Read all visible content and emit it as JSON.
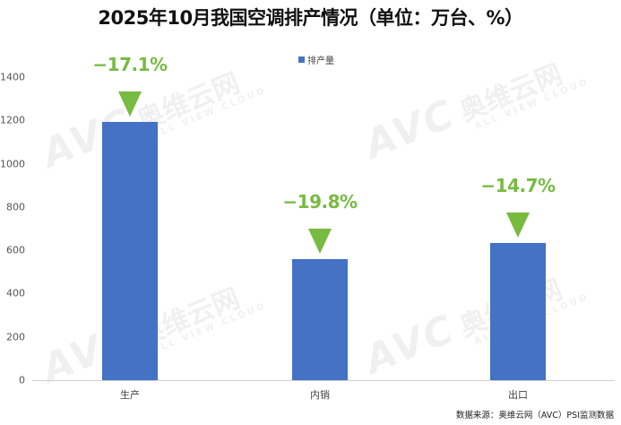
{
  "title": "2025年10月我国空调排产情况（单位：万台、%）",
  "legend": {
    "label": "排产量",
    "color": "#4472c4"
  },
  "y_ticks": [
    "1400",
    "1200",
    "1000",
    "800",
    "600",
    "400",
    "200",
    "0"
  ],
  "bars": [
    {
      "category": "生产",
      "value": 1192,
      "change": "−17.1%"
    },
    {
      "category": "内销",
      "value": 559,
      "change": "−19.8%"
    },
    {
      "category": "出口",
      "value": 633,
      "change": "−14.7%"
    }
  ],
  "colors": {
    "bar": "#4472c4",
    "change": "#77bb41"
  },
  "source": "数据来源：奥维云网（AVC）PSI监测数据",
  "watermark": {
    "logo": "AVC",
    "cn": "奥维云网",
    "en": "ALL VIEW CLOUD"
  },
  "chart_data": {
    "type": "bar",
    "title": "2025年10月我国空调排产情况（单位：万台、%）",
    "categories": [
      "生产",
      "内销",
      "出口"
    ],
    "series": [
      {
        "name": "排产量",
        "values": [
          1192,
          559,
          633
        ]
      }
    ],
    "annotations": [
      {
        "category": "生产",
        "text": "−17.1%",
        "yoy_change": -17.1
      },
      {
        "category": "内销",
        "text": "−19.8%",
        "yoy_change": -19.8
      },
      {
        "category": "出口",
        "text": "−14.7%",
        "yoy_change": -14.7
      }
    ],
    "xlabel": "",
    "ylabel": "",
    "ylim": [
      0,
      1400
    ],
    "yticks": [
      0,
      200,
      400,
      600,
      800,
      1000,
      1200,
      1400
    ],
    "grid": false,
    "legend_position": "top"
  }
}
